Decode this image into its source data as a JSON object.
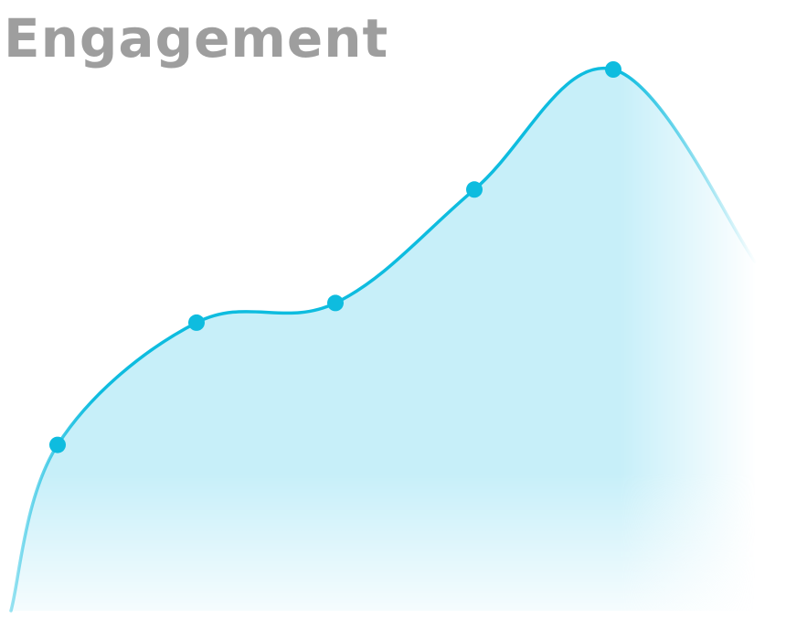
{
  "chart_data": {
    "type": "area",
    "title": "Engagement",
    "xlabel": "",
    "ylabel": "",
    "x": [
      1,
      2,
      3,
      4,
      5
    ],
    "series": [
      {
        "values": [
          38,
          66,
          70.5,
          96.5,
          124
        ]
      }
    ],
    "y_at_left_edge": 0,
    "y_at_right_edge": 80,
    "ylim": [
      0,
      136
    ],
    "grid": false,
    "legend": "none",
    "colors": {
      "line": "#0ebcdf",
      "fill": "#c7eff9",
      "title": "#9e9e9e"
    }
  }
}
